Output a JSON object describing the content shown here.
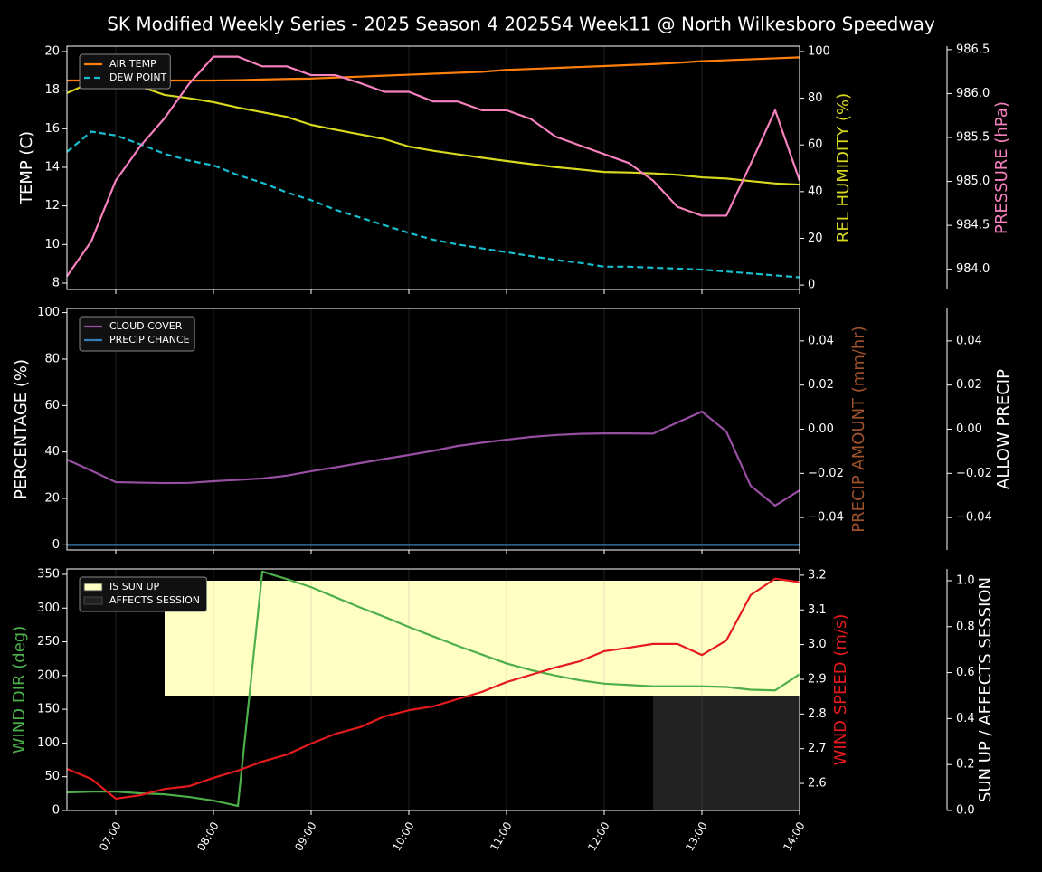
{
  "title": "SK Modified Weekly Series - 2025 Season 4 2025S4 Week11 @ North Wilkesboro Speedway",
  "chart_data": [
    {
      "type": "line",
      "grid": true,
      "legend": "upper left",
      "x": [
        "06:30",
        "06:45",
        "07:00",
        "07:15",
        "07:30",
        "07:45",
        "08:00",
        "08:15",
        "08:30",
        "08:45",
        "09:00",
        "09:15",
        "09:30",
        "09:45",
        "10:00",
        "10:15",
        "10:30",
        "10:45",
        "11:00",
        "11:15",
        "11:30",
        "11:45",
        "12:00",
        "12:15",
        "12:30",
        "12:45",
        "13:00",
        "13:15",
        "13:30",
        "13:45",
        "14:00"
      ],
      "xlim": [
        "06:30",
        "14:00"
      ],
      "xticks": [
        "07:00",
        "08:00",
        "09:00",
        "10:00",
        "11:00",
        "12:00",
        "13:00",
        "14:00"
      ],
      "ylabel": "TEMP (C)",
      "ylabel_color": "#ffffff",
      "ylim": [
        7.67,
        20.28
      ],
      "yticks": [
        8,
        10,
        12,
        14,
        16,
        18,
        20
      ],
      "y2label": "REL HUMIDITY (%)",
      "y2label_color": "#d8d820",
      "y2lim": [
        -1.9,
        102.3
      ],
      "y2ticks": [
        0,
        20,
        40,
        60,
        80,
        100
      ],
      "y3label": "PRESSURE (hPa)",
      "y3label_color": "#f781bf",
      "y3lim": [
        983.77,
        986.54
      ],
      "y3ticks": [
        {
          "value": 984.0,
          "label": "984.0"
        },
        984.5,
        {
          "value": 985.0,
          "label": "985.0"
        },
        985.5,
        {
          "value": 986.0,
          "label": "986.0"
        },
        986.5
      ],
      "series": [
        {
          "name": "AIR TEMP",
          "color": "#ff7f0e",
          "values": [
            18.5,
            18.5,
            18.45,
            18.45,
            18.5,
            18.5,
            18.5,
            18.52,
            18.55,
            18.58,
            18.6,
            18.65,
            18.7,
            18.75,
            18.8,
            18.85,
            18.9,
            18.95,
            19.05,
            19.1,
            19.15,
            19.2,
            19.25,
            19.3,
            19.35,
            19.42,
            19.5,
            19.55,
            19.6,
            19.65,
            19.7
          ]
        },
        {
          "name": "DEW POINT",
          "color": "#17becf",
          "dashed": true,
          "values": [
            14.8,
            15.85,
            15.65,
            15.2,
            14.7,
            14.35,
            14.1,
            13.6,
            13.2,
            12.7,
            12.3,
            11.8,
            11.4,
            11.0,
            10.6,
            10.25,
            10.0,
            9.8,
            9.6,
            9.4,
            9.2,
            9.05,
            8.85,
            8.85,
            8.8,
            8.75,
            8.7,
            8.6,
            8.5,
            8.4,
            8.3
          ]
        },
        {
          "color": "#d8d820",
          "axis": "y2",
          "values": [
            82.2,
            86.8,
            86.0,
            85.0,
            81.4,
            80.0,
            78.3,
            76.0,
            74.0,
            72.0,
            68.6,
            66.5,
            64.5,
            62.5,
            59.3,
            57.5,
            56.0,
            54.5,
            53.1,
            51.8,
            50.5,
            49.5,
            48.4,
            48.2,
            47.8,
            47.2,
            46.1,
            45.6,
            44.5,
            43.5,
            43.0
          ]
        },
        {
          "color": "#f781bf",
          "axis": "y3",
          "values": [
            983.92,
            984.32,
            985.01,
            985.4,
            985.72,
            986.11,
            986.42,
            986.42,
            986.31,
            986.31,
            986.21,
            986.21,
            986.12,
            986.02,
            986.02,
            985.91,
            985.91,
            985.81,
            985.81,
            985.71,
            985.51,
            985.41,
            985.31,
            985.21,
            985.01,
            984.71,
            984.61,
            984.61,
            985.2,
            985.81,
            985.01
          ]
        }
      ]
    },
    {
      "type": "line",
      "grid": true,
      "legend": "upper left",
      "x": [
        "06:30",
        "06:45",
        "07:00",
        "07:15",
        "07:30",
        "07:45",
        "08:00",
        "08:15",
        "08:30",
        "08:45",
        "09:00",
        "09:15",
        "09:30",
        "09:45",
        "10:00",
        "10:15",
        "10:30",
        "10:45",
        "11:00",
        "11:15",
        "11:30",
        "11:45",
        "12:00",
        "12:15",
        "12:30",
        "12:45",
        "13:00",
        "13:15",
        "13:30",
        "13:45",
        "14:00"
      ],
      "xlim": [
        "06:30",
        "14:00"
      ],
      "xticks": [
        "07:00",
        "08:00",
        "09:00",
        "10:00",
        "11:00",
        "12:00",
        "13:00",
        "14:00"
      ],
      "ylabel": "PERCENTAGE (%)",
      "ylabel_color": "#ffffff",
      "ylim": [
        -2.2,
        101.8
      ],
      "yticks": [
        0,
        20,
        40,
        60,
        80,
        100
      ],
      "y2label": "PRECIP AMOUNT (mm/hr)",
      "y2label_color": "#a0522d",
      "y2lim": [
        -0.0547,
        0.0547
      ],
      "y2ticks": [
        {
          "value": -0.04,
          "label": "−0.04"
        },
        {
          "value": -0.02,
          "label": "−0.02"
        },
        {
          "value": 0,
          "label": "0.00"
        },
        0.02,
        0.04
      ],
      "y3label": "ALLOW PRECIP",
      "y3label_color": "#ffffff",
      "y3lim": [
        -0.0547,
        0.0547
      ],
      "y3ticks": [
        {
          "value": -0.04,
          "label": "−0.04"
        },
        {
          "value": -0.02,
          "label": "−0.02"
        },
        {
          "value": 0,
          "label": "0.00"
        },
        0.02,
        0.04
      ],
      "series": [
        {
          "name": "CLOUD COVER",
          "color": "#984ea3",
          "values": [
            36.7,
            32.0,
            27.0,
            26.8,
            26.6,
            26.7,
            27.4,
            28.0,
            28.6,
            29.8,
            31.7,
            33.4,
            35.2,
            37.0,
            38.7,
            40.5,
            42.6,
            44.0,
            45.3,
            46.5,
            47.3,
            47.8,
            48.0,
            48.0,
            47.9,
            52.7,
            57.4,
            48.8,
            25.4,
            16.9,
            23.5
          ]
        },
        {
          "name": "PRECIP CHANCE",
          "color": "#377eb8",
          "values": [
            0,
            0,
            0,
            0,
            0,
            0,
            0,
            0,
            0,
            0,
            0,
            0,
            0,
            0,
            0,
            0,
            0,
            0,
            0,
            0,
            0,
            0,
            0,
            0,
            0,
            0,
            0,
            0,
            0,
            0,
            0
          ]
        }
      ]
    },
    {
      "type": "line",
      "grid": true,
      "legend": "upper left",
      "x": [
        "06:30",
        "06:45",
        "07:00",
        "07:15",
        "07:30",
        "07:45",
        "08:00",
        "08:15",
        "08:30",
        "08:45",
        "09:00",
        "09:15",
        "09:30",
        "09:45",
        "10:00",
        "10:15",
        "10:30",
        "10:45",
        "11:00",
        "11:15",
        "11:30",
        "11:45",
        "12:00",
        "12:15",
        "12:30",
        "12:45",
        "13:00",
        "13:15",
        "13:30",
        "13:45",
        "14:00"
      ],
      "xlim": [
        "06:30",
        "14:00"
      ],
      "xticks": [
        "07:00",
        "08:00",
        "09:00",
        "10:00",
        "11:00",
        "12:00",
        "13:00",
        "14:00"
      ],
      "ylabel": "WIND DIR (deg)",
      "ylabel_color": "#4daf4a",
      "ylim": [
        0,
        358
      ],
      "yticks": [
        0,
        50,
        100,
        150,
        200,
        250,
        300,
        350
      ],
      "y2label": "WIND SPEED (m/s)",
      "y2label_color": "#e41a1c",
      "y2lim": [
        2.522,
        3.218
      ],
      "y2ticks": [
        2.6,
        2.7,
        2.8,
        2.9,
        {
          "value": 3,
          "label": "3.0"
        },
        3.1,
        3.2
      ],
      "y3label": "SUN UP / AFFECTS SESSION",
      "y3label_color": "#ffffff",
      "y3lim": [
        0,
        1.051
      ],
      "y3ticks": [
        {
          "value": 0,
          "label": "0.0"
        },
        0.2,
        0.4,
        0.6,
        0.8,
        {
          "value": 1,
          "label": "1.0"
        }
      ],
      "series": [
        {
          "name": "IS SUN UP",
          "type": "area",
          "color": "#ffffc4",
          "axis": "y3",
          "base": 0.5,
          "values": [
            null,
            null,
            null,
            null,
            1,
            1,
            1,
            1,
            1,
            1,
            1,
            1,
            1,
            1,
            1,
            1,
            1,
            1,
            1,
            1,
            1,
            1,
            1,
            1,
            1,
            1,
            1,
            1,
            1,
            1,
            1
          ]
        },
        {
          "name": "AFFECTS SESSION",
          "type": "area",
          "color": "#222222",
          "axis": "y3",
          "base": 0,
          "values": [
            null,
            null,
            null,
            null,
            null,
            null,
            null,
            null,
            null,
            null,
            null,
            null,
            null,
            null,
            null,
            null,
            null,
            null,
            null,
            null,
            null,
            null,
            null,
            null,
            0.5,
            0.5,
            0.5,
            0.5,
            0.5,
            0.5,
            0.5
          ]
        },
        {
          "color": "#4daf4a",
          "values": [
            26.8,
            28,
            28,
            25.5,
            24,
            20,
            14.7,
            6.7,
            354,
            343,
            331,
            316,
            301,
            287,
            272,
            258,
            244,
            231,
            218,
            208,
            200,
            193,
            188,
            186,
            184,
            184,
            184,
            183,
            179,
            178,
            202
          ]
        },
        {
          "color": "#e41a1c",
          "axis": "y2",
          "values": [
            2.642,
            2.613,
            2.556,
            2.566,
            2.584,
            2.592,
            2.616,
            2.637,
            2.663,
            2.683,
            2.715,
            2.743,
            2.762,
            2.793,
            2.811,
            2.822,
            2.843,
            2.864,
            2.892,
            2.913,
            2.934,
            2.952,
            2.981,
            2.991,
            3.002,
            3.002,
            2.97,
            3.012,
            3.143,
            3.19,
            3.18
          ]
        }
      ]
    }
  ]
}
